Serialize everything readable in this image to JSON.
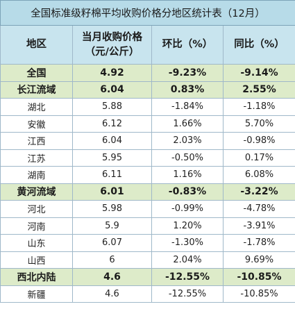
{
  "title": "全国标准级籽棉平均收购价格分地区统计表（12月）",
  "headers": {
    "region": "地区",
    "price_line1": "当月收购价格",
    "price_line2": "（元/公斤）",
    "mom": "环比（%）",
    "yoy": "同比（%）"
  },
  "rows": [
    {
      "kind": "region",
      "name": "全国",
      "price": "4.92",
      "mom": "-9.23%",
      "yoy": "-9.14%"
    },
    {
      "kind": "region",
      "name": "长江流域",
      "price": "6.04",
      "mom": "0.83%",
      "yoy": "2.55%"
    },
    {
      "kind": "row",
      "name": "湖北",
      "price": "5.88",
      "mom": "-1.84%",
      "yoy": "-1.18%"
    },
    {
      "kind": "row",
      "name": "安徽",
      "price": "6.12",
      "mom": "1.66%",
      "yoy": "5.70%"
    },
    {
      "kind": "row",
      "name": "江西",
      "price": "6.04",
      "mom": "2.03%",
      "yoy": "-0.98%"
    },
    {
      "kind": "row",
      "name": "江苏",
      "price": "5.95",
      "mom": "-0.50%",
      "yoy": "0.17%"
    },
    {
      "kind": "row",
      "name": "湖南",
      "price": "6.11",
      "mom": "1.16%",
      "yoy": "6.08%"
    },
    {
      "kind": "region",
      "name": "黄河流域",
      "price": "6.01",
      "mom": "-0.83%",
      "yoy": "-3.22%"
    },
    {
      "kind": "row",
      "name": "河北",
      "price": "5.98",
      "mom": "-0.99%",
      "yoy": "-4.78%"
    },
    {
      "kind": "row",
      "name": "河南",
      "price": "5.9",
      "mom": "1.20%",
      "yoy": "-3.91%"
    },
    {
      "kind": "row",
      "name": "山东",
      "price": "6.07",
      "mom": "-1.30%",
      "yoy": "-1.78%"
    },
    {
      "kind": "row",
      "name": "山西",
      "price": "6",
      "mom": "2.04%",
      "yoy": "9.69%"
    },
    {
      "kind": "region",
      "name": "西北内陆",
      "price": "4.6",
      "mom": "-12.55%",
      "yoy": "-10.85%"
    },
    {
      "kind": "row",
      "name": "新疆",
      "price": "4.6",
      "mom": "-12.55%",
      "yoy": "-10.85%"
    }
  ]
}
